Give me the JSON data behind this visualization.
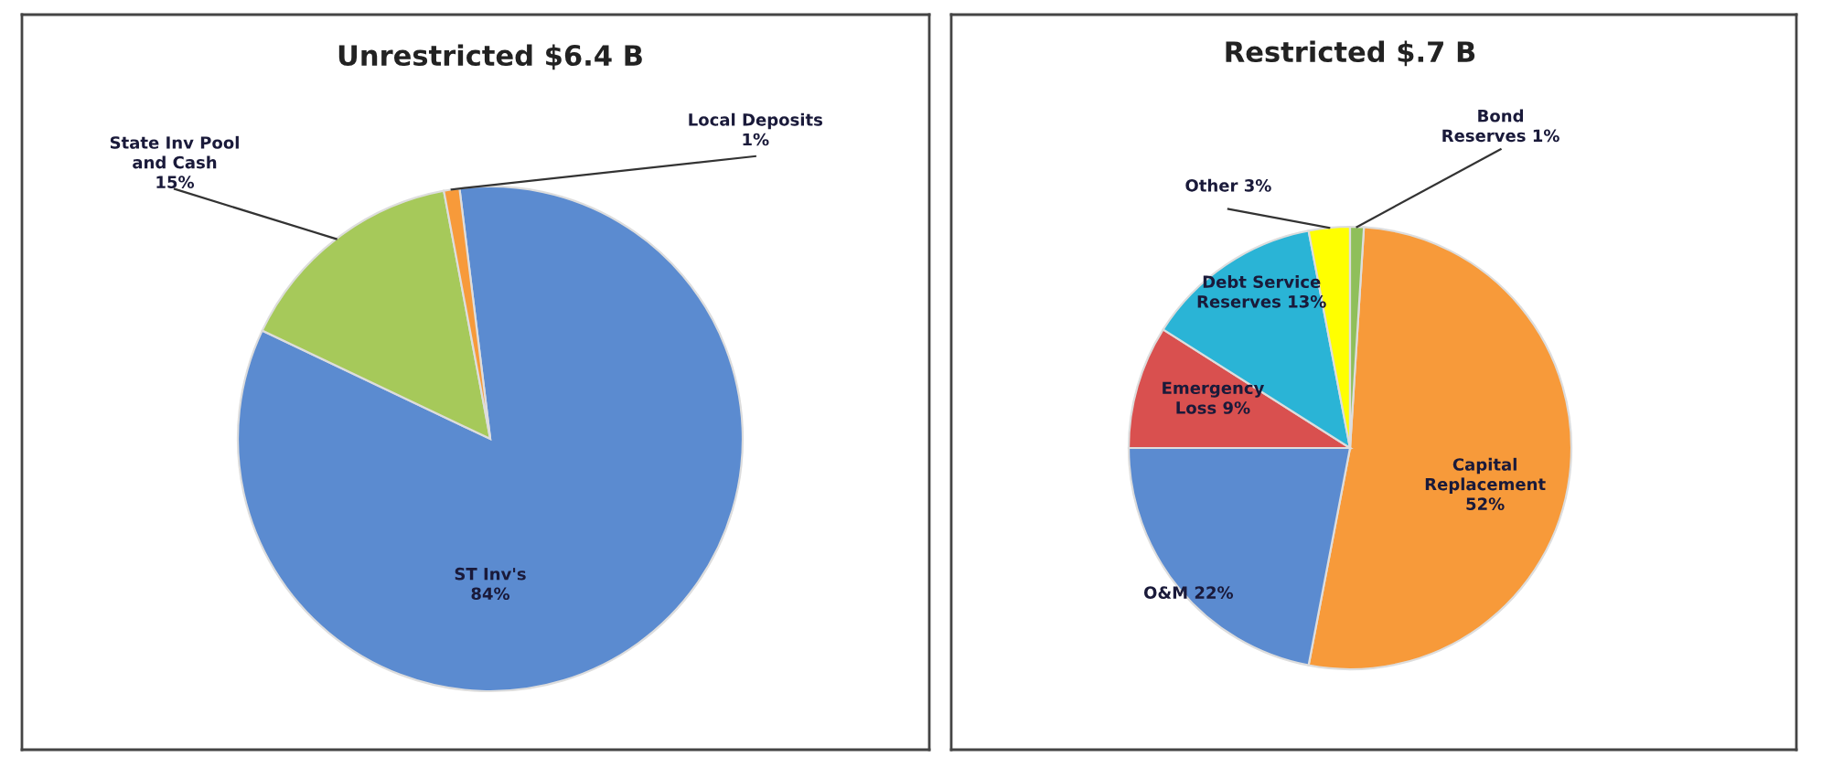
{
  "chart_data": [
    {
      "type": "pie",
      "title": "Unrestricted $6.4 B",
      "categories": [
        "ST Inv's",
        "State Inv Pool\nand Cash",
        "Local Deposits"
      ],
      "values": [
        84,
        15,
        1
      ],
      "colors": [
        "#5b8bd0",
        "#a6c95a",
        "#f79a3a"
      ],
      "value_labels": [
        "84%",
        "15%",
        "1%"
      ]
    },
    {
      "type": "pie",
      "title": "Restricted $.7 B",
      "categories": [
        "Capital\nReplacement",
        "O&M",
        "Emergency\nLoss",
        "Debt Service\nReserves",
        "Other",
        "Bond\nReserves"
      ],
      "values": [
        52,
        22,
        9,
        13,
        3,
        1
      ],
      "colors": [
        "#f79a3a",
        "#5b8bd0",
        "#d9504f",
        "#2ab4d6",
        "#ffff00",
        "#8fbf5a"
      ],
      "value_labels": [
        "52%",
        "22%",
        "9%",
        "13%",
        "3%",
        "1%"
      ]
    }
  ]
}
